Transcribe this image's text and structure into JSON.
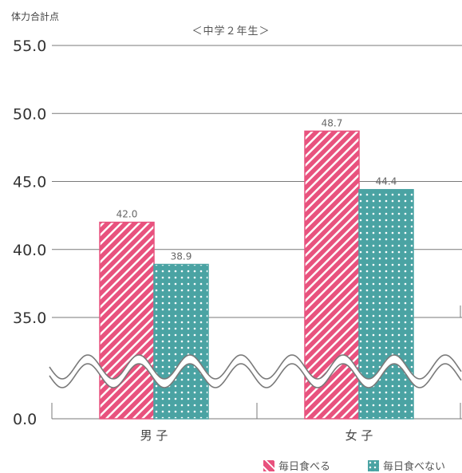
{
  "chart_data": {
    "type": "bar",
    "ylabel": "体力合計点",
    "subtitle": "＜中学２年生＞",
    "categories": [
      "男 子",
      "女 子"
    ],
    "series": [
      {
        "name": "毎日食べる",
        "values": [
          42.0,
          48.7
        ],
        "color": "#e8527e",
        "pattern": "diagonal-stripes"
      },
      {
        "name": "毎日食べない",
        "values": [
          38.9,
          44.4
        ],
        "color": "#4aa3a3",
        "pattern": "dots"
      }
    ],
    "data_labels": [
      [
        "42.0",
        "38.9"
      ],
      [
        "48.7",
        "44.4"
      ]
    ],
    "ylim": [
      35.0,
      55.0
    ],
    "yticks": [
      "55.0",
      "50.0",
      "45.0",
      "40.0",
      "35.0",
      "0.0"
    ],
    "axis_break": true,
    "legend_position": "bottom-right",
    "grid": true
  }
}
